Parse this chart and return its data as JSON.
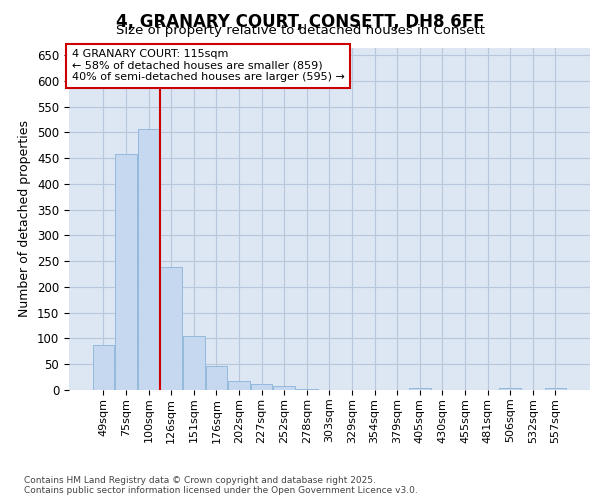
{
  "title_line1": "4, GRANARY COURT, CONSETT, DH8 6FF",
  "title_line2": "Size of property relative to detached houses in Consett",
  "xlabel": "Distribution of detached houses by size in Consett",
  "ylabel": "Number of detached properties",
  "categories": [
    "49sqm",
    "75sqm",
    "100sqm",
    "126sqm",
    "151sqm",
    "176sqm",
    "202sqm",
    "227sqm",
    "252sqm",
    "278sqm",
    "303sqm",
    "329sqm",
    "354sqm",
    "379sqm",
    "405sqm",
    "430sqm",
    "455sqm",
    "481sqm",
    "506sqm",
    "532sqm",
    "557sqm"
  ],
  "values": [
    88,
    458,
    507,
    238,
    104,
    47,
    18,
    12,
    8,
    1,
    0,
    0,
    0,
    0,
    3,
    0,
    0,
    0,
    3,
    0,
    3
  ],
  "bar_color": "#c5d8f0",
  "bar_edge_color": "#8ab4d8",
  "grid_color": "#b8c8dc",
  "background_color": "#dde6f3",
  "annotation_line1": "4 GRANARY COURT: 115sqm",
  "annotation_line2": "← 58% of detached houses are smaller (859)",
  "annotation_line3": "40% of semi-detached houses are larger (595) →",
  "annotation_box_edge_color": "#cc0000",
  "vline_x_index": 2.5,
  "vline_color": "#cc0000",
  "ylim": [
    0,
    665
  ],
  "yticks": [
    0,
    50,
    100,
    150,
    200,
    250,
    300,
    350,
    400,
    450,
    500,
    550,
    600,
    650
  ],
  "footer_line1": "Contains HM Land Registry data © Crown copyright and database right 2025.",
  "footer_line2": "Contains public sector information licensed under the Open Government Licence v3.0."
}
